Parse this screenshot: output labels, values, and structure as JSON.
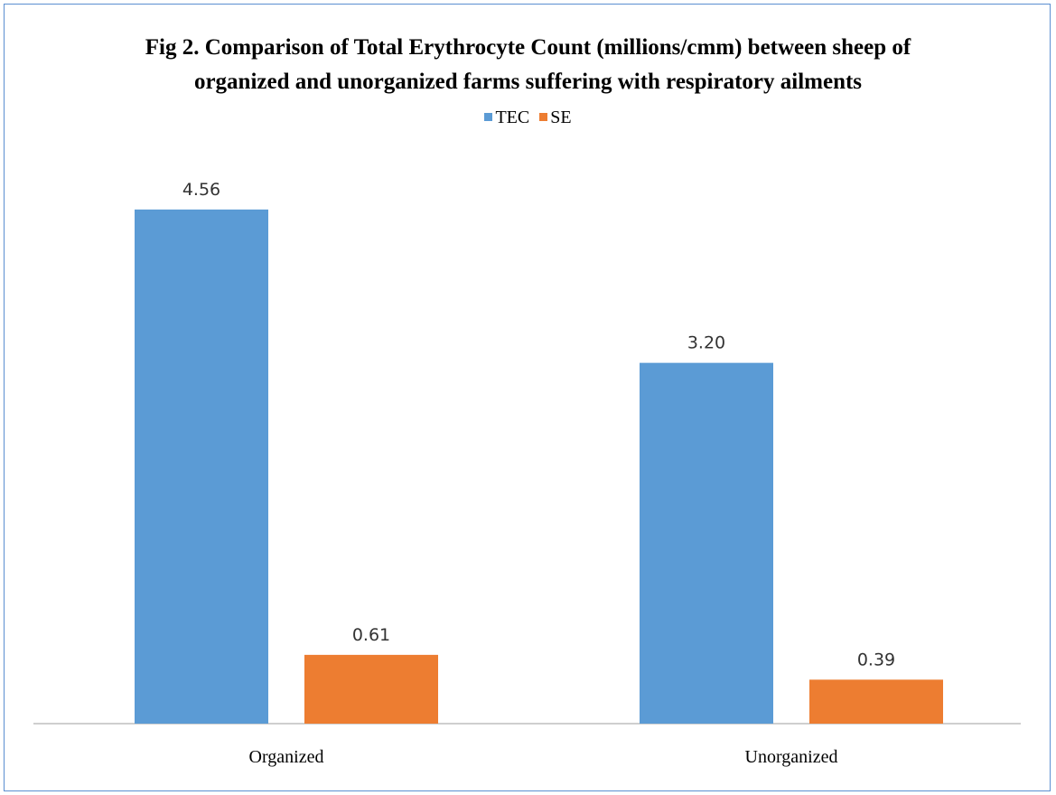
{
  "chart_data": {
    "type": "bar",
    "title_lines": [
      "Fig 2. Comparison of Total Erythrocyte Count (millions/cmm) between sheep of",
      "organized and unorganized farms suffering with respiratory ailments"
    ],
    "categories": [
      "Organized",
      "Unorganized"
    ],
    "series": [
      {
        "name": "TEC",
        "values": [
          4.56,
          3.2
        ],
        "labels": [
          "4.56",
          "3.20"
        ],
        "color": "#5b9bd5"
      },
      {
        "name": "SE",
        "values": [
          0.61,
          0.39
        ],
        "labels": [
          "0.61",
          "0.39"
        ],
        "color": "#ed7d31"
      }
    ],
    "ylim": [
      0,
      5
    ],
    "grid": false,
    "legend_position": "top"
  }
}
